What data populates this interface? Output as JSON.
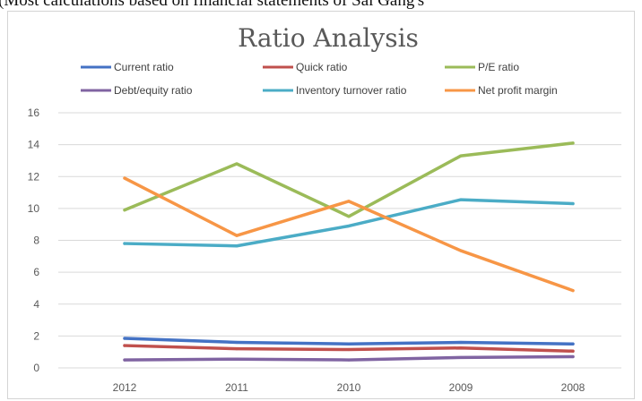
{
  "top_text": "(Most calculations based on financial statements of Sai Gang's",
  "chart_data": {
    "type": "line",
    "title": "Ratio Analysis",
    "categories": [
      "2012",
      "2011",
      "2010",
      "2009",
      "2008"
    ],
    "ylim": [
      0,
      16
    ],
    "yticks": [
      0,
      2,
      4,
      6,
      8,
      10,
      12,
      14,
      16
    ],
    "grid": true,
    "legend_position": "top",
    "series": [
      {
        "name": "Current ratio",
        "color": "#4472c4",
        "values": [
          1.85,
          1.6,
          1.5,
          1.6,
          1.5
        ]
      },
      {
        "name": "Quick ratio",
        "color": "#c0504d",
        "values": [
          1.4,
          1.2,
          1.15,
          1.25,
          1.05
        ]
      },
      {
        "name": "P/E ratio",
        "color": "#9bbb59",
        "values": [
          9.9,
          12.8,
          9.5,
          13.3,
          14.1
        ]
      },
      {
        "name": "Debt/equity ratio",
        "color": "#8064a2",
        "values": [
          0.5,
          0.55,
          0.5,
          0.65,
          0.7
        ]
      },
      {
        "name": "Inventory turnover ratio",
        "color": "#4bacc6",
        "values": [
          7.8,
          7.65,
          8.9,
          10.55,
          10.3
        ]
      },
      {
        "name": "Net profit margin",
        "color": "#f79646",
        "values": [
          11.9,
          8.3,
          10.45,
          7.35,
          4.85
        ]
      }
    ]
  }
}
